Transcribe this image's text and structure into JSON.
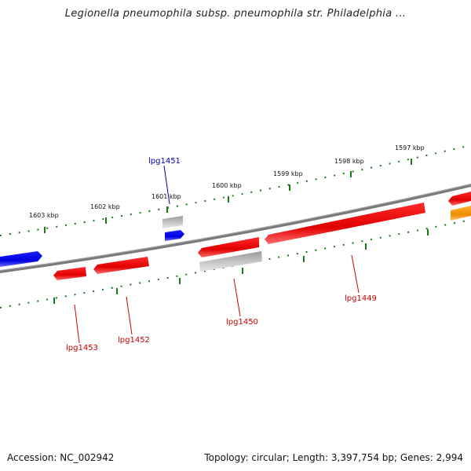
{
  "title": "Legionella pneumophila subsp. pneumophila str. Philadelphia ...",
  "footer": {
    "accession": "Accession: NC_002942",
    "summary": "Topology: circular; Length: 3,397,754 bp; Genes: 2,994"
  },
  "colors": {
    "backbone": "#7a7a7a",
    "tick": "#1a7a1a",
    "forward_gene": "#0000ee",
    "reverse_gene": "#ee0000",
    "pseudo_gene": "#b8b8b8",
    "orange_gene": "#ff9900",
    "label_forward": "#0000aa",
    "label_reverse": "#cc0000"
  },
  "ticks": [
    "1597 kbp",
    "1598 kbp",
    "1599 kbp",
    "1600 kbp",
    "1601 kbp",
    "1602 kbp",
    "1603 kbp"
  ],
  "gene_labels": {
    "lpg1451": "lpg1451",
    "lpg1453": "lpg1453",
    "lpg1452": "lpg1452",
    "lpg1450": "lpg1450",
    "lpg1449": "lpg1449"
  }
}
